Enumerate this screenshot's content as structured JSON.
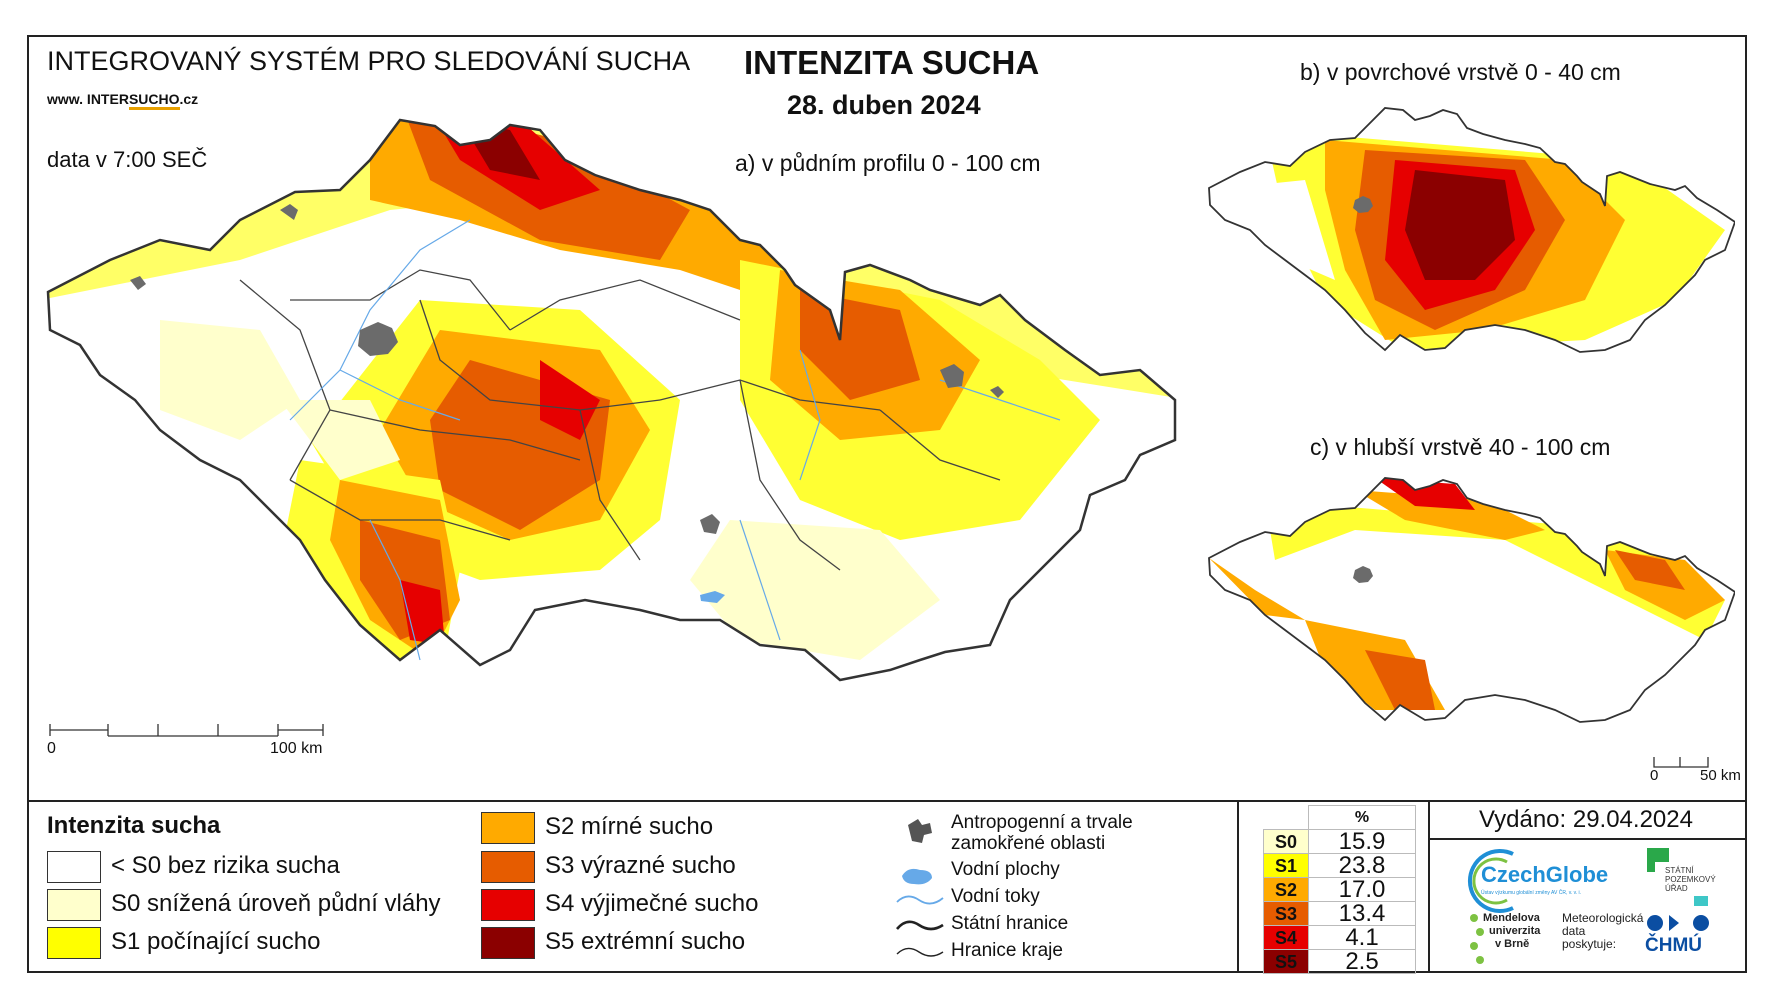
{
  "header": {
    "system_title": "INTEGROVANÝ SYSTÉM PRO SLEDOVÁNÍ SUCHA",
    "url_prefix": "www. INTER",
    "url_brand": "SUCHO",
    "url_suffix": ".cz",
    "data_time": "data v 7:00 SEČ",
    "main_title": "INTENZITA SUCHA",
    "date": "28. duben 2024"
  },
  "maps": {
    "a": {
      "subtitle": "a) v půdním profilu 0 - 100 cm"
    },
    "b": {
      "subtitle": "b) v povrchové vrstvě 0 - 40 cm"
    },
    "c": {
      "subtitle": "c) v hlubší vrstvě 40 - 100 cm"
    }
  },
  "scalebar_main": {
    "start": "0",
    "end": "100 km"
  },
  "scalebar_small": {
    "start": "0",
    "end": "50 km"
  },
  "legend": {
    "title": "Intenzita sucha",
    "classes": [
      {
        "label": "< S0 bez rizika sucha",
        "color": "#ffffff"
      },
      {
        "label": "S0 snížená úroveň půdní vláhy",
        "color": "#ffffcc"
      },
      {
        "label": "S1 počínající sucho",
        "color": "#ffff00"
      },
      {
        "label": "S2 mírné sucho",
        "color": "#ffaa00"
      },
      {
        "label": "S3 výrazné sucho",
        "color": "#e65c00"
      },
      {
        "label": "S4 výjimečné sucho",
        "color": "#e60000"
      },
      {
        "label": "S5 extrémní sucho",
        "color": "#8b0000"
      }
    ],
    "features": [
      {
        "icon": "anthropogenic-area-icon",
        "label_line1": "Antropogenní a trvale",
        "label_line2": "zamokřené oblasti"
      },
      {
        "icon": "water-body-icon",
        "label": "Vodní plochy"
      },
      {
        "icon": "river-icon",
        "label": "Vodní toky"
      },
      {
        "icon": "state-border-icon",
        "label": "Státní hranice"
      },
      {
        "icon": "region-border-icon",
        "label": "Hranice kraje"
      }
    ]
  },
  "stats": {
    "header": "%",
    "rows": [
      {
        "class": "S0",
        "value": "15.9",
        "color": "#ffffcc"
      },
      {
        "class": "S1",
        "value": "23.8",
        "color": "#ffff00"
      },
      {
        "class": "S2",
        "value": "17.0",
        "color": "#ffaa00"
      },
      {
        "class": "S3",
        "value": "13.4",
        "color": "#e65c00"
      },
      {
        "class": "S4",
        "value": "4.1",
        "color": "#e60000"
      },
      {
        "class": "S5",
        "value": "2.5",
        "color": "#8b0000"
      }
    ]
  },
  "issued": "Vydáno: 29.04.2024",
  "logos": {
    "czechglobe": "CzechGlobe",
    "czechglobe_sub": "Ústav výzkumu globální změny AV ČR, v. v. i.",
    "spu_line1": "STÁTNÍ",
    "spu_line2": "POZEMKOVÝ",
    "spu_line3": "ÚŘAD",
    "mendelu_line1": "Mendelova",
    "mendelu_line2": "univerzita",
    "mendelu_line3": "v Brně",
    "meteo_line1": "Meteorologická",
    "meteo_line2": "data",
    "meteo_line3": "poskytuje:",
    "chmu": "ČHMÚ"
  }
}
